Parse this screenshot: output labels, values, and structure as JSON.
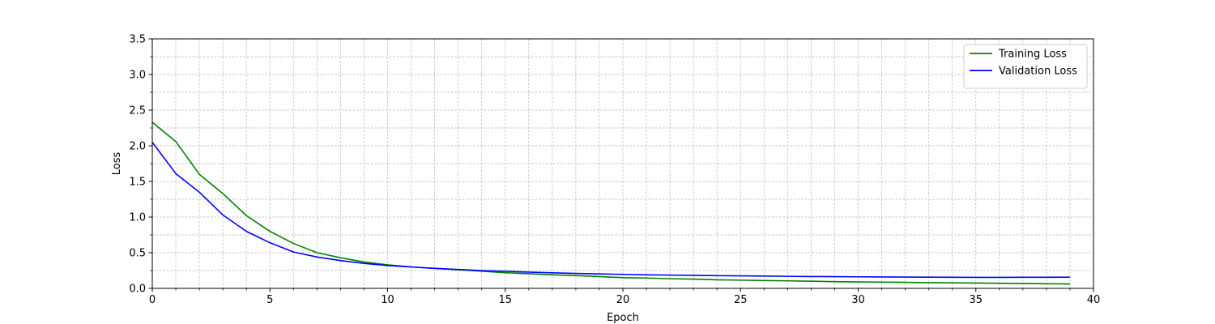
{
  "chart_data": {
    "type": "line",
    "title": "",
    "xlabel": "Epoch",
    "ylabel": "Loss",
    "xlim": [
      0,
      40
    ],
    "ylim": [
      0,
      3.5
    ],
    "x_ticks": [
      0,
      5,
      10,
      15,
      20,
      25,
      30,
      35,
      40
    ],
    "y_ticks": [
      0.0,
      0.5,
      1.0,
      1.5,
      2.0,
      2.5,
      3.0,
      3.5
    ],
    "x_tick_labels": [
      "0",
      "5",
      "10",
      "15",
      "20",
      "25",
      "30",
      "35",
      "40"
    ],
    "y_tick_labels": [
      "0.0",
      "0.5",
      "1.0",
      "1.5",
      "2.0",
      "2.5",
      "3.0",
      "3.5"
    ],
    "grid": true,
    "minor_grid": true,
    "legend_position": "top-right",
    "x": [
      0,
      1,
      2,
      3,
      4,
      5,
      6,
      7,
      8,
      9,
      10,
      11,
      12,
      13,
      14,
      15,
      16,
      17,
      18,
      19,
      20,
      21,
      22,
      23,
      24,
      25,
      26,
      27,
      28,
      29,
      30,
      31,
      32,
      33,
      34,
      35,
      36,
      37,
      38,
      39
    ],
    "series": [
      {
        "name": "Training Loss",
        "color": "#008000",
        "values": [
          2.33,
          2.06,
          1.6,
          1.33,
          1.02,
          0.8,
          0.63,
          0.5,
          0.43,
          0.37,
          0.33,
          0.3,
          0.28,
          0.26,
          0.24,
          0.22,
          0.205,
          0.19,
          0.18,
          0.165,
          0.15,
          0.145,
          0.135,
          0.13,
          0.12,
          0.115,
          0.11,
          0.105,
          0.1,
          0.095,
          0.09,
          0.088,
          0.085,
          0.08,
          0.077,
          0.075,
          0.072,
          0.068,
          0.065,
          0.062
        ]
      },
      {
        "name": "Validation Loss",
        "color": "#0000ff",
        "values": [
          2.05,
          1.61,
          1.35,
          1.03,
          0.8,
          0.64,
          0.51,
          0.44,
          0.39,
          0.35,
          0.32,
          0.3,
          0.28,
          0.265,
          0.25,
          0.24,
          0.228,
          0.218,
          0.21,
          0.203,
          0.196,
          0.19,
          0.186,
          0.182,
          0.178,
          0.175,
          0.172,
          0.169,
          0.166,
          0.164,
          0.162,
          0.16,
          0.158,
          0.157,
          0.155,
          0.154,
          0.154,
          0.155,
          0.156,
          0.157
        ]
      }
    ]
  }
}
